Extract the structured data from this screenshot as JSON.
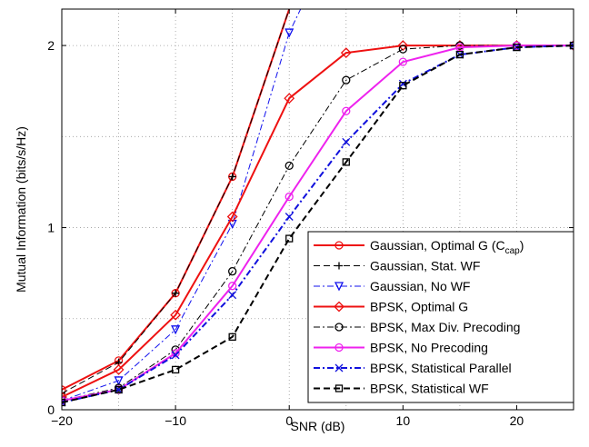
{
  "chart_data": {
    "type": "line",
    "xlabel": "SNR  (dB)",
    "ylabel": "Mutual  Information  (bits/s/Hz)",
    "xlim": [
      -20,
      25
    ],
    "ylim": [
      0,
      2.2
    ],
    "xticks": [
      -20,
      -10,
      0,
      10,
      20
    ],
    "xtick_labels": [
      "−20",
      "−10",
      "0",
      "10",
      "20"
    ],
    "yticks": [
      0,
      1,
      2
    ],
    "ytick_labels": [
      "0",
      "1",
      "2"
    ],
    "grid": true,
    "legend_position": "bottom-right",
    "series": [
      {
        "name": "Gaussian, Optimal G (C",
        "name_subscript": "cap",
        "name_suffix": ")",
        "color": "#ee1111",
        "dash": "solid",
        "marker": "circle",
        "width": 2,
        "x": [
          -20,
          -15,
          -10,
          -5,
          0
        ],
        "y": [
          0.11,
          0.27,
          0.64,
          1.28,
          2.2
        ]
      },
      {
        "name": "Gaussian, Stat. WF",
        "color": "#000000",
        "dash": "dash",
        "marker": "plus",
        "width": 1,
        "x": [
          -20,
          -15,
          -10,
          -5,
          0
        ],
        "y": [
          0.09,
          0.26,
          0.64,
          1.28,
          2.2
        ]
      },
      {
        "name": "Gaussian, No WF",
        "color": "#1111ee",
        "dash": "dashdot",
        "marker": "triangle-down",
        "width": 1,
        "x": [
          -20,
          -15,
          -10,
          -5,
          0,
          1
        ],
        "y": [
          0.05,
          0.16,
          0.44,
          1.02,
          2.07,
          2.2
        ]
      },
      {
        "name": "BPSK, Optimal G",
        "color": "#ee1111",
        "dash": "solid",
        "marker": "diamond",
        "width": 2,
        "x": [
          -20,
          -15,
          -10,
          -5,
          0,
          5,
          10,
          15,
          20,
          25
        ],
        "y": [
          0.07,
          0.22,
          0.52,
          1.06,
          1.71,
          1.96,
          2.0,
          2.0,
          2.0,
          2.0
        ]
      },
      {
        "name": "BPSK, Max Div. Precoding",
        "color": "#000000",
        "dash": "dashdot",
        "marker": "circle",
        "width": 1,
        "x": [
          -20,
          -15,
          -10,
          -5,
          0,
          5,
          10,
          15,
          20,
          25
        ],
        "y": [
          0.05,
          0.12,
          0.33,
          0.76,
          1.34,
          1.81,
          1.98,
          2.0,
          2.0,
          2.0
        ]
      },
      {
        "name": "BPSK, No Precoding",
        "color": "#ee22ee",
        "dash": "solid",
        "marker": "circle",
        "width": 2,
        "x": [
          -20,
          -15,
          -10,
          -5,
          0,
          5,
          10,
          15,
          20,
          25
        ],
        "y": [
          0.05,
          0.11,
          0.31,
          0.68,
          1.17,
          1.64,
          1.91,
          1.99,
          2.0,
          2.0
        ]
      },
      {
        "name": "BPSK, Statistical Parallel",
        "color": "#1111dd",
        "dash": "dashdot",
        "marker": "x",
        "width": 2,
        "x": [
          -20,
          -15,
          -10,
          -5,
          0,
          5,
          10,
          15,
          20,
          25
        ],
        "y": [
          0.04,
          0.11,
          0.3,
          0.63,
          1.06,
          1.47,
          1.79,
          1.95,
          1.99,
          2.0
        ]
      },
      {
        "name": "BPSK, Statistical WF",
        "color": "#000000",
        "dash": "dash",
        "marker": "square",
        "width": 2,
        "x": [
          -20,
          -15,
          -10,
          -5,
          0,
          5,
          10,
          15,
          20,
          25
        ],
        "y": [
          0.04,
          0.11,
          0.22,
          0.4,
          0.94,
          1.36,
          1.78,
          1.95,
          1.99,
          2.0
        ]
      }
    ]
  }
}
